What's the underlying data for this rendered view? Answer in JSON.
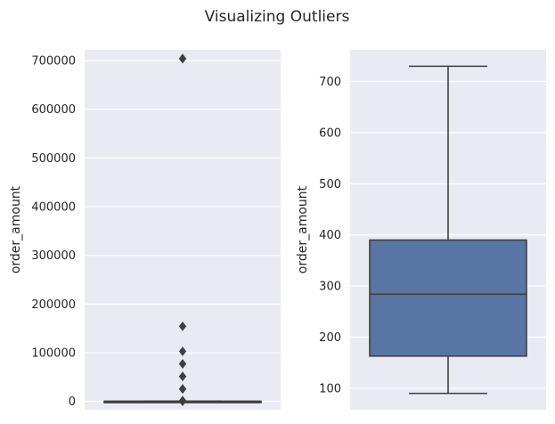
{
  "figure": {
    "suptitle": "Visualizing Outliers",
    "colors": {
      "panel_bg": "#eaeaf2",
      "grid": "#ffffff",
      "box_fill": "#5975a4",
      "box_edge": "#3f3f3f",
      "outlier": "#3f3f3f"
    }
  },
  "chart_data": [
    {
      "type": "box",
      "title": "",
      "xlabel": "",
      "ylabel": "order_amount",
      "ylim": [
        -17000,
        722000
      ],
      "yticks": [
        0,
        100000,
        200000,
        300000,
        400000,
        500000,
        600000,
        700000
      ],
      "ytick_labels": [
        "0",
        "100000",
        "200000",
        "300000",
        "400000",
        "500000",
        "600000",
        "700000"
      ],
      "grid": true,
      "box": {
        "whisker_low": 90,
        "q1": 163,
        "median": 284,
        "q3": 390,
        "whisker_high": 730
      },
      "outliers": [
        154350,
        102900,
        77175,
        77175,
        51450,
        51450,
        25725,
        25725,
        1760,
        1086,
        1056,
        980,
        965,
        960,
        935,
        900,
        890,
        885,
        865,
        845,
        816,
        800,
        780,
        760,
        750,
        745,
        704000,
        704000,
        704000
      ]
    },
    {
      "type": "box",
      "title": "",
      "xlabel": "",
      "ylabel": "order_amount",
      "ylim": [
        58,
        762
      ],
      "yticks": [
        100,
        200,
        300,
        400,
        500,
        600,
        700
      ],
      "ytick_labels": [
        "100",
        "200",
        "300",
        "400",
        "500",
        "600",
        "700"
      ],
      "grid": true,
      "box": {
        "whisker_low": 90,
        "q1": 163,
        "median": 284,
        "q3": 390,
        "whisker_high": 730
      },
      "outliers": []
    }
  ]
}
